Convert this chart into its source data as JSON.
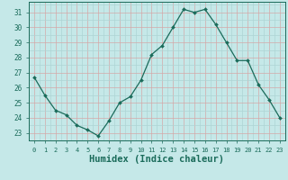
{
  "x": [
    0,
    1,
    2,
    3,
    4,
    5,
    6,
    7,
    8,
    9,
    10,
    11,
    12,
    13,
    14,
    15,
    16,
    17,
    18,
    19,
    20,
    21,
    22,
    23
  ],
  "y": [
    26.7,
    25.5,
    24.5,
    24.2,
    23.5,
    23.2,
    22.8,
    23.8,
    25.0,
    25.4,
    26.5,
    28.2,
    28.8,
    30.0,
    31.2,
    31.0,
    31.2,
    30.2,
    29.0,
    27.8,
    27.8,
    26.2,
    25.2,
    24.0
  ],
  "line_color": "#1a6b5a",
  "marker": "D",
  "marker_size": 2.0,
  "bg_color": "#c5e8e8",
  "grid_minor_color": "#aed4d4",
  "grid_major_color": "#d4a8a8",
  "tick_color": "#1a6b5a",
  "label_color": "#1a6b5a",
  "xlabel": "Humidex (Indice chaleur)",
  "xlabel_fontsize": 7.5,
  "ylabel_ticks": [
    23,
    24,
    25,
    26,
    27,
    28,
    29,
    30,
    31
  ],
  "xtick_labels": [
    "0",
    "1",
    "2",
    "3",
    "4",
    "5",
    "6",
    "7",
    "8",
    "9",
    "10",
    "11",
    "12",
    "13",
    "14",
    "15",
    "16",
    "17",
    "18",
    "19",
    "20",
    "21",
    "22",
    "23"
  ],
  "ylim": [
    22.5,
    31.7
  ],
  "xlim": [
    -0.5,
    23.5
  ]
}
